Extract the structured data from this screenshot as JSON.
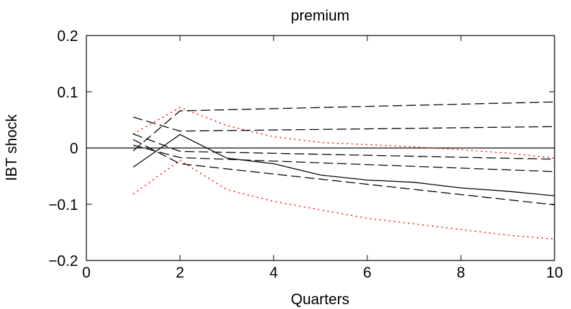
{
  "chart_data": {
    "type": "line",
    "title": "premium",
    "xlabel": "Quarters",
    "ylabel": "IBT shock",
    "xlim": [
      0,
      10
    ],
    "ylim": [
      -0.2,
      0.2
    ],
    "x_ticks": [
      "0",
      "2",
      "4",
      "6",
      "8",
      "10"
    ],
    "y_ticks": [
      "0.2",
      "0.1",
      "0",
      "−0.1",
      "−0.2"
    ],
    "grid": false,
    "series": [
      {
        "style": "solid",
        "color": "#000000",
        "x": [
          1,
          2,
          3,
          4,
          5,
          6,
          7,
          8,
          9,
          10
        ],
        "y": [
          -0.034,
          0.024,
          -0.018,
          -0.028,
          -0.048,
          -0.057,
          -0.061,
          -0.071,
          -0.077,
          -0.085
        ]
      },
      {
        "style": "dotted",
        "color": "#ff0000",
        "x": [
          1,
          2,
          3,
          4,
          5,
          6,
          7,
          8,
          9,
          10
        ],
        "y": [
          0.025,
          0.072,
          0.04,
          0.02,
          0.01,
          0.006,
          0.002,
          -0.003,
          -0.009,
          -0.018
        ]
      },
      {
        "style": "dotted",
        "color": "#ff0000",
        "x": [
          1,
          2,
          3,
          4,
          5,
          6,
          7,
          8,
          9,
          10
        ],
        "y": [
          -0.082,
          -0.022,
          -0.074,
          -0.095,
          -0.11,
          -0.125,
          -0.135,
          -0.145,
          -0.155,
          -0.162
        ]
      },
      {
        "style": "dashed",
        "color": "#000000",
        "x": [
          1,
          2,
          10
        ],
        "y": [
          0.055,
          0.03,
          0.038
        ]
      },
      {
        "style": "dashed",
        "color": "#000000",
        "x": [
          1,
          2,
          10
        ],
        "y": [
          -0.005,
          0.066,
          0.082
        ]
      },
      {
        "style": "dashed",
        "color": "#000000",
        "x": [
          1,
          2,
          10
        ],
        "y": [
          0.025,
          -0.006,
          -0.02
        ]
      },
      {
        "style": "dashed",
        "color": "#000000",
        "x": [
          1,
          2,
          10
        ],
        "y": [
          0.005,
          -0.017,
          -0.042
        ]
      },
      {
        "style": "dashed",
        "color": "#000000",
        "x": [
          1,
          2,
          10
        ],
        "y": [
          0.015,
          -0.028,
          -0.101
        ]
      }
    ]
  }
}
